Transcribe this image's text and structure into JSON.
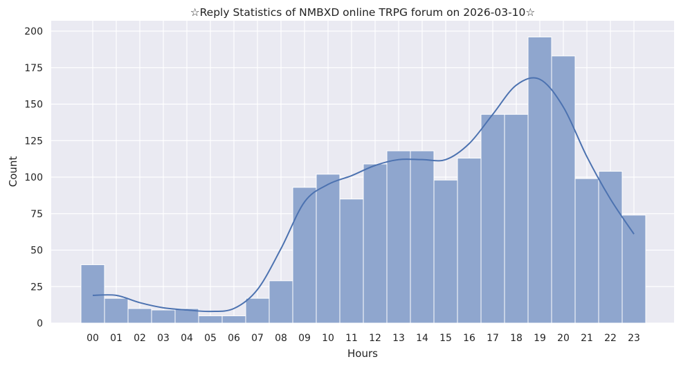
{
  "chart_data": {
    "type": "bar",
    "title": "☆Reply Statistics of NMBXD online TRPG forum on 2026-03-10☆",
    "xlabel": "Hours",
    "ylabel": "Count",
    "ylim": [
      0,
      210
    ],
    "yticks": [
      0,
      25,
      50,
      75,
      100,
      125,
      150,
      175,
      200
    ],
    "grid": true,
    "categories": [
      "00",
      "01",
      "02",
      "03",
      "04",
      "05",
      "06",
      "07",
      "08",
      "09",
      "10",
      "11",
      "12",
      "13",
      "14",
      "15",
      "16",
      "17",
      "18",
      "19",
      "20",
      "21",
      "22",
      "23"
    ],
    "values": [
      40,
      17,
      10,
      9,
      10,
      5,
      5,
      17,
      29,
      93,
      102,
      85,
      109,
      118,
      118,
      98,
      113,
      143,
      143,
      196,
      183,
      99,
      104,
      74
    ],
    "kde": {
      "x": [
        "00",
        "01",
        "02",
        "03",
        "04",
        "05",
        "06",
        "07",
        "08",
        "09",
        "10",
        "11",
        "12",
        "13",
        "14",
        "15",
        "16",
        "17",
        "18",
        "19",
        "20",
        "21",
        "22",
        "23"
      ],
      "y": [
        19,
        19,
        14,
        10.5,
        9,
        8,
        10,
        23,
        51,
        83,
        95,
        101,
        108,
        112,
        112,
        112,
        123,
        143,
        163,
        167,
        148,
        114,
        85,
        61
      ]
    },
    "colors": {
      "bar": "#8FA6CE",
      "line": "#4C72B0",
      "background": "#EAEAF2",
      "grid": "#FFFFFF"
    }
  }
}
